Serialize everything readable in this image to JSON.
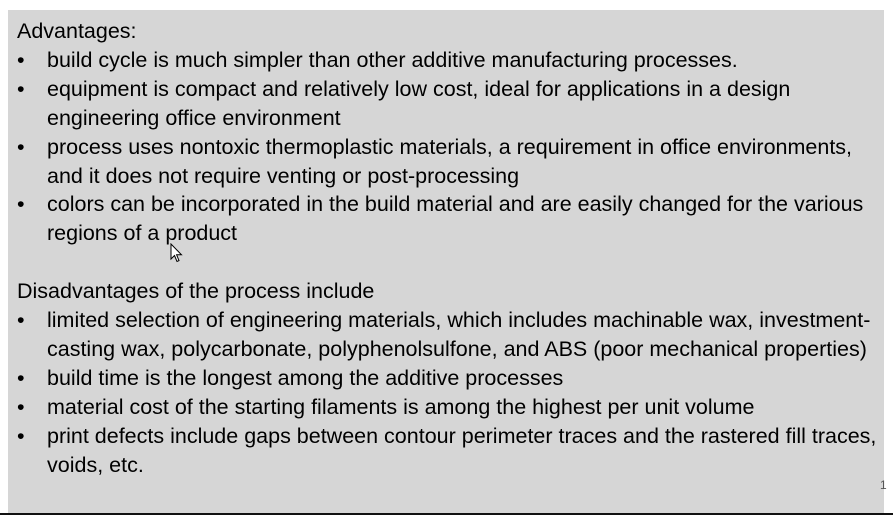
{
  "advantages": {
    "heading": "Advantages:",
    "items": [
      "build cycle is much simpler than other additive manufacturing processes.",
      "equipment is compact and relatively low cost, ideal for applications in a design engineering office environment",
      "process uses nontoxic thermoplastic materials, a requirement in office environments, and it does not require venting or post-processing",
      "colors can be incorporated in the build material and are easily changed for the various regions of a product"
    ]
  },
  "disadvantages": {
    "heading": "Disadvantages of the process include",
    "items": [
      "limited selection of engineering materials, which includes machinable wax, investment-casting wax, polycarbonate, polyphenolsulfone, and ABS (poor mechanical properties)",
      "build time is the longest among the additive processes",
      "material cost of the starting filaments is among the highest per unit volume",
      "print defects include gaps between contour perimeter traces and the rastered fill traces, voids, etc."
    ]
  },
  "page_number": "1",
  "colors": {
    "box_background": "#d6d6d6",
    "text": "#000000"
  },
  "icons": {
    "cursor": "mouse-pointer-icon"
  }
}
